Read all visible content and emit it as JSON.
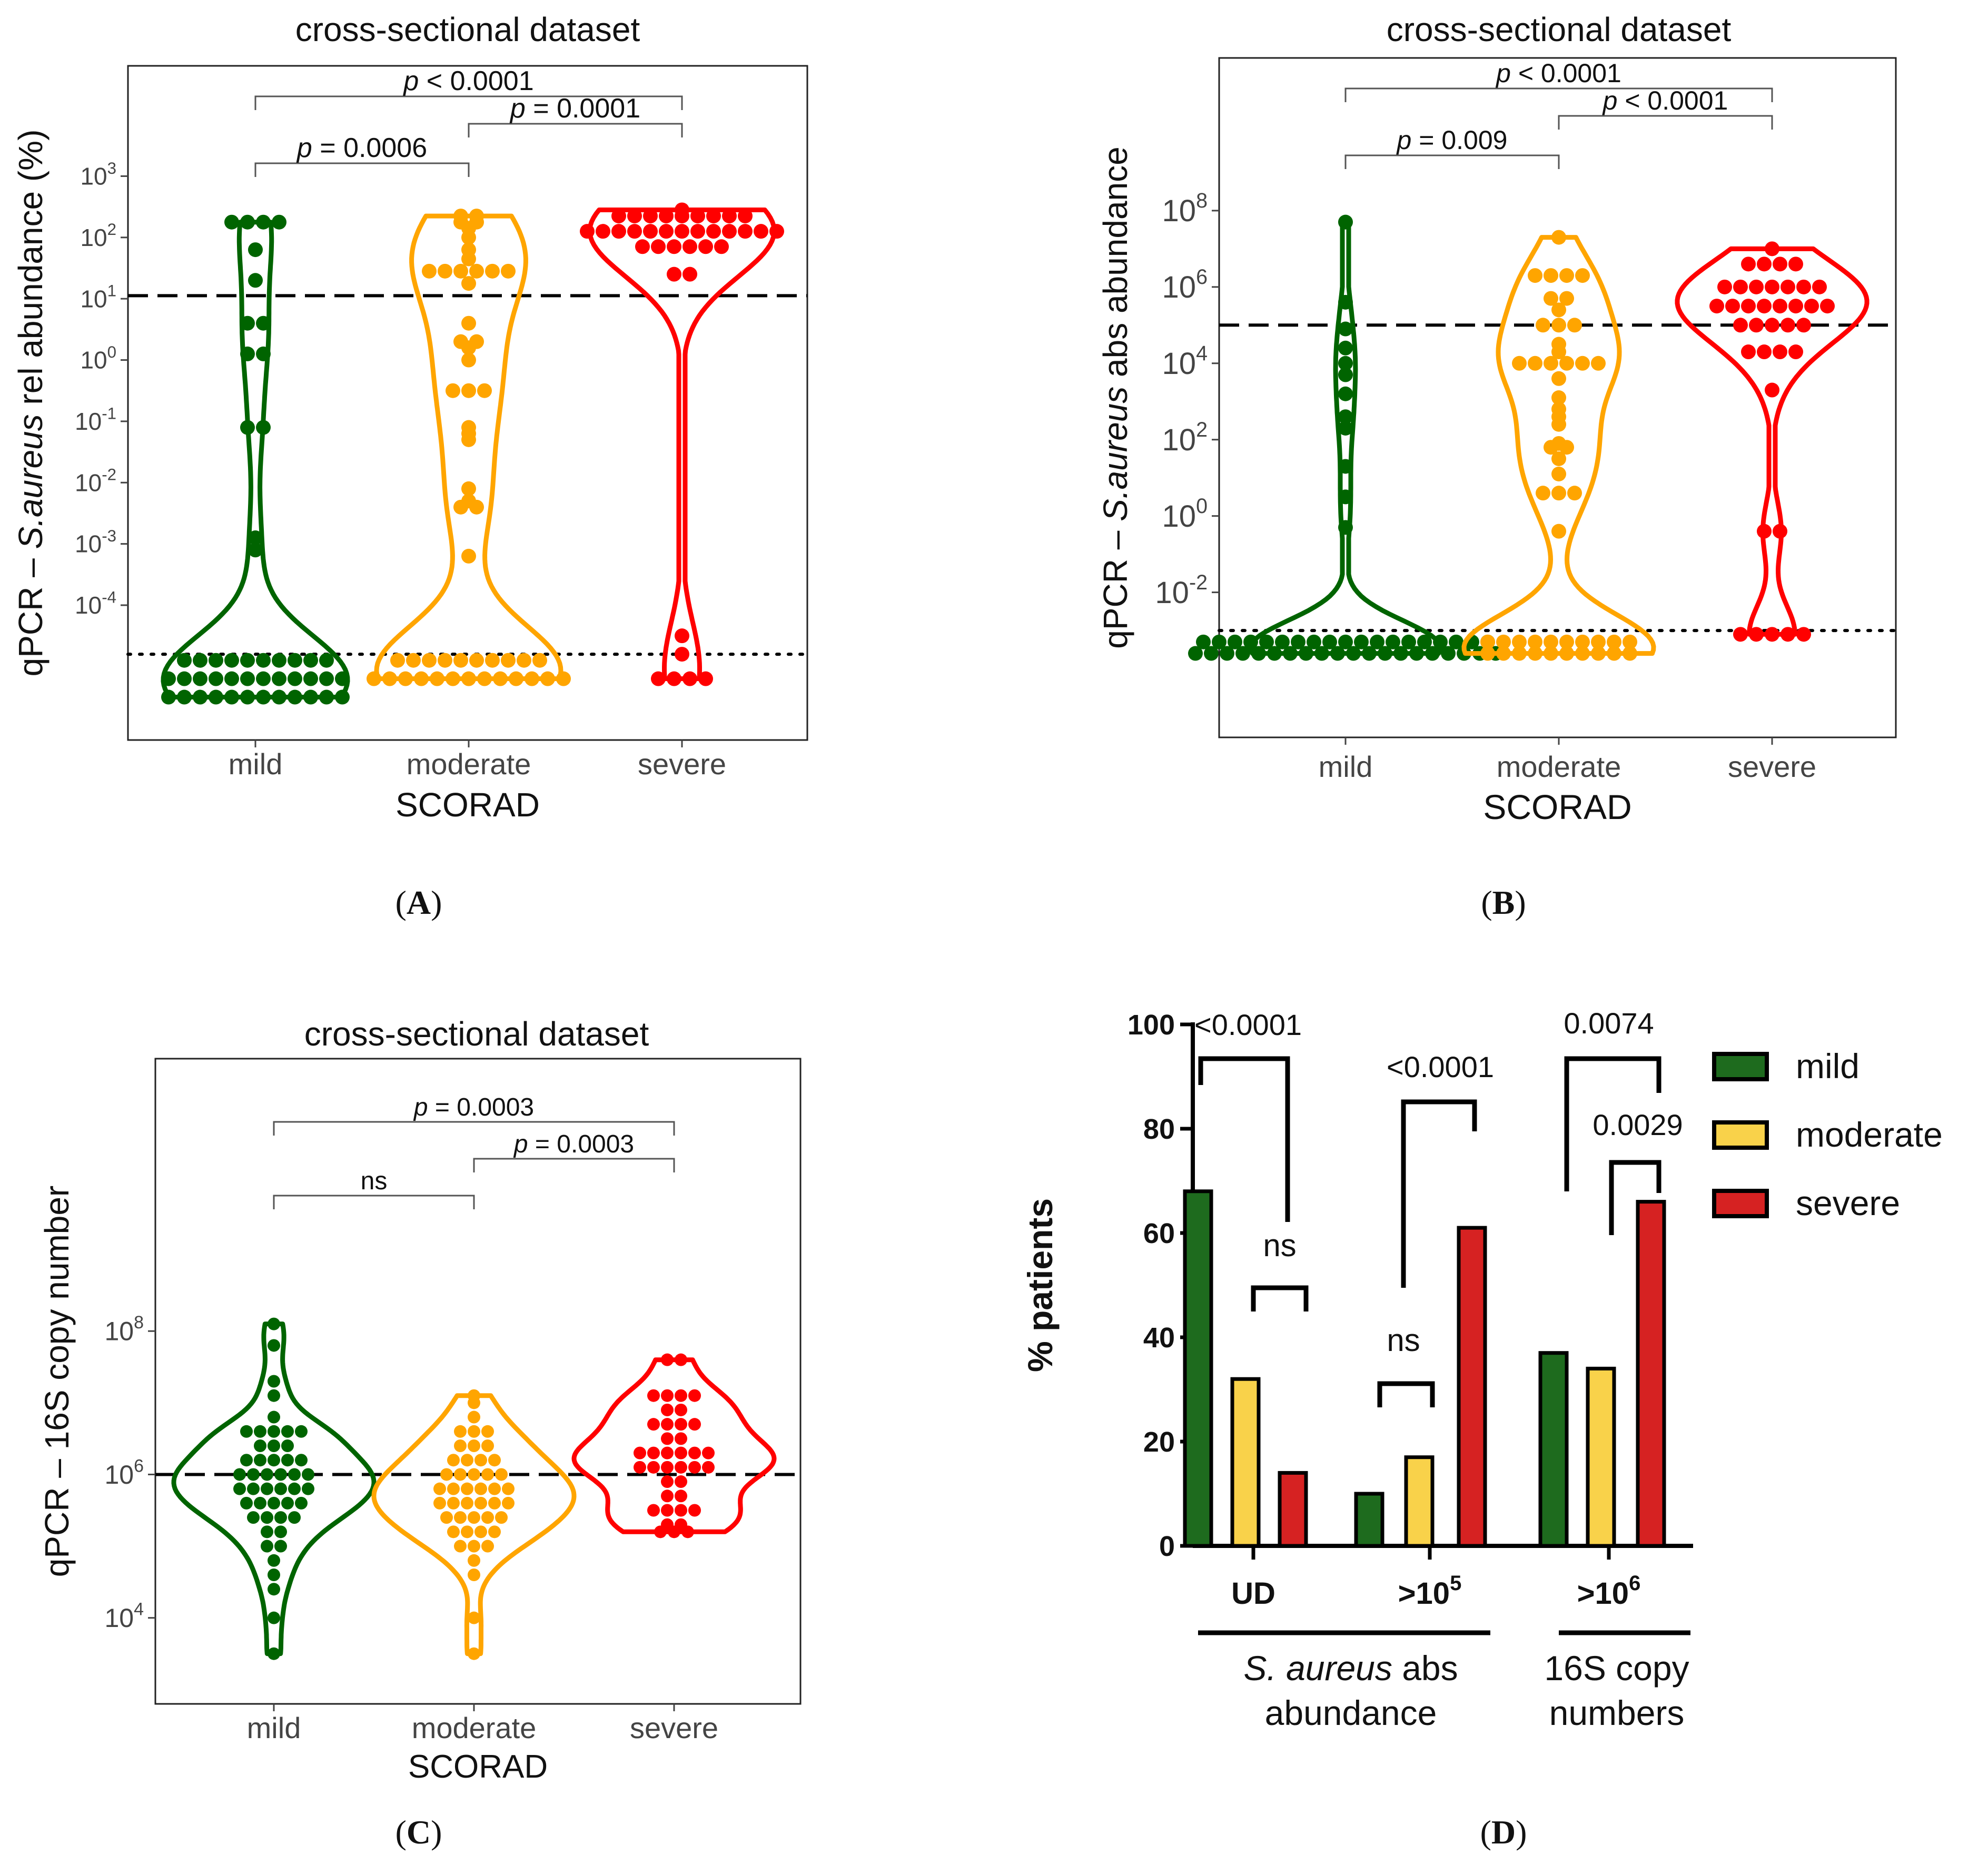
{
  "colors": {
    "mild": "#006400",
    "moderate": "#FFA500",
    "severe": "#FF0000",
    "mild_bar": "#1E6B1E",
    "moderate_bar": "#F9D24A",
    "severe_bar": "#D62222"
  },
  "panels": {
    "A": "A",
    "B": "B",
    "C": "C",
    "D": "D"
  },
  "chart_data": [
    {
      "id": "A",
      "type": "violin",
      "title": "cross-sectional dataset",
      "ylabel_pre": "qPCR – ",
      "ylabel_it": "S.aureus",
      "ylabel_post": " rel abundance (%)",
      "xlabel": "SCORAD",
      "categories": [
        "mild",
        "moderate",
        "severe"
      ],
      "yscale": "log10",
      "ylim_log": [
        -6.2,
        4.8
      ],
      "yticks": [
        {
          "e": "-4"
        },
        {
          "e": "-3"
        },
        {
          "e": "-2"
        },
        {
          "e": "-1"
        },
        {
          "e": "0"
        },
        {
          "e": "1"
        },
        {
          "e": "2"
        },
        {
          "e": "3"
        }
      ],
      "hline_dashed_log": 1.05,
      "hline_dotted_log": -4.8,
      "comparisons": [
        {
          "pair": [
            0,
            1
          ],
          "text": "= 0.0006",
          "level": 0
        },
        {
          "pair": [
            1,
            2
          ],
          "text": "= 0.0001",
          "level": 1
        },
        {
          "pair": [
            0,
            2
          ],
          "text": "< 0.0001",
          "level": 2
        }
      ],
      "series": [
        {
          "name": "mild",
          "points_log": [
            2.25,
            2.25,
            2.25,
            2.25,
            1.8,
            1.3,
            0.6,
            0.6,
            0.1,
            0.1,
            -1.1,
            -1.1,
            -2.9,
            -3.1,
            -4.9,
            -4.9,
            -4.9,
            -4.9,
            -4.9,
            -4.9,
            -4.9,
            -4.9,
            -4.9,
            -4.9,
            -5.2,
            -5.2,
            -5.2,
            -5.2,
            -5.2,
            -5.2,
            -5.2,
            -5.2,
            -5.2,
            -5.2,
            -5.2,
            -5.2,
            -5.5,
            -5.5,
            -5.5,
            -5.5,
            -5.5,
            -5.5,
            -5.5,
            -5.5,
            -5.5,
            -5.5,
            -5.5,
            -5.5
          ]
        },
        {
          "name": "moderate",
          "points_log": [
            2.35,
            2.35,
            2.25,
            2.25,
            2.15,
            2.0,
            1.8,
            1.65,
            1.45,
            1.45,
            1.45,
            1.45,
            1.45,
            1.45,
            1.25,
            0.6,
            0.3,
            0.3,
            0.2,
            0.0,
            -0.5,
            -0.5,
            -0.5,
            -1.1,
            -1.2,
            -1.3,
            -2.1,
            -2.3,
            -2.4,
            -2.4,
            -3.2,
            -4.9,
            -4.9,
            -4.9,
            -4.9,
            -4.9,
            -4.9,
            -4.9,
            -4.9,
            -4.9,
            -4.9,
            -5.2,
            -5.2,
            -5.2,
            -5.2,
            -5.2,
            -5.2,
            -5.2,
            -5.2,
            -5.2,
            -5.2,
            -5.2,
            -5.2,
            -5.2
          ]
        },
        {
          "name": "severe",
          "points_log": [
            2.45,
            2.35,
            2.35,
            2.35,
            2.35,
            2.35,
            2.35,
            2.35,
            2.35,
            2.35,
            2.1,
            2.1,
            2.1,
            2.1,
            2.1,
            2.1,
            2.1,
            2.1,
            2.1,
            2.1,
            2.1,
            2.1,
            2.1,
            1.85,
            1.85,
            1.85,
            1.85,
            1.85,
            1.85,
            1.4,
            1.4,
            -4.5,
            -4.8,
            -5.2,
            -5.2,
            -5.2,
            -5.2
          ]
        }
      ]
    },
    {
      "id": "B",
      "type": "violin",
      "title": "cross-sectional dataset",
      "ylabel_pre": "qPCR – ",
      "ylabel_it": "S.aureus",
      "ylabel_post": " abs abundance",
      "xlabel": "SCORAD",
      "categories": [
        "mild",
        "moderate",
        "severe"
      ],
      "yscale": "log10",
      "ylim_log": [
        -5.8,
        12.0
      ],
      "yticks": [
        {
          "e": "-2"
        },
        {
          "e": "0"
        },
        {
          "e": "2"
        },
        {
          "e": "4"
        },
        {
          "e": "6"
        },
        {
          "e": "8"
        }
      ],
      "hline_dashed_log": 5.0,
      "hline_dotted_log": -3.0,
      "comparisons": [
        {
          "pair": [
            0,
            1
          ],
          "text": "= 0.009",
          "level": 0
        },
        {
          "pair": [
            1,
            2
          ],
          "text": "< 0.0001",
          "level": 1
        },
        {
          "pair": [
            0,
            2
          ],
          "text": "< 0.0001",
          "level": 2
        }
      ],
      "series": [
        {
          "name": "mild",
          "points_log": [
            7.7,
            5.6,
            4.9,
            4.4,
            4.0,
            3.7,
            3.2,
            2.6,
            2.3,
            1.3,
            0.5,
            -0.3,
            -3.3,
            -3.3,
            -3.3,
            -3.3,
            -3.3,
            -3.3,
            -3.3,
            -3.3,
            -3.3,
            -3.3,
            -3.3,
            -3.3,
            -3.3,
            -3.3,
            -3.3,
            -3.3,
            -3.3,
            -3.3,
            -3.3,
            -3.6,
            -3.6,
            -3.6,
            -3.6,
            -3.6,
            -3.6,
            -3.6,
            -3.6,
            -3.6,
            -3.6,
            -3.6,
            -3.6,
            -3.6,
            -3.6,
            -3.6,
            -3.6,
            -3.6,
            -3.6,
            -3.6,
            -3.6
          ]
        },
        {
          "name": "moderate",
          "points_log": [
            7.3,
            6.3,
            6.3,
            6.3,
            6.3,
            5.7,
            5.7,
            5.4,
            5.0,
            5.0,
            5.0,
            4.5,
            4.3,
            4.0,
            4.0,
            4.0,
            4.0,
            4.0,
            4.0,
            3.6,
            3.1,
            2.8,
            2.6,
            2.4,
            1.9,
            1.8,
            1.8,
            1.5,
            1.1,
            0.6,
            0.6,
            0.6,
            -0.4,
            -3.3,
            -3.3,
            -3.3,
            -3.3,
            -3.3,
            -3.3,
            -3.3,
            -3.3,
            -3.3,
            -3.3,
            -3.6,
            -3.6,
            -3.6,
            -3.6,
            -3.6,
            -3.6,
            -3.6,
            -3.6,
            -3.6,
            -3.6
          ]
        },
        {
          "name": "severe",
          "points_log": [
            7.0,
            6.6,
            6.6,
            6.6,
            6.6,
            6.0,
            6.0,
            6.0,
            6.0,
            6.0,
            6.0,
            6.0,
            5.5,
            5.5,
            5.5,
            5.5,
            5.5,
            5.5,
            5.5,
            5.5,
            5.0,
            5.0,
            5.0,
            5.0,
            5.0,
            4.3,
            4.3,
            4.3,
            4.3,
            3.3,
            -0.4,
            -0.4,
            -3.1,
            -3.1,
            -3.1,
            -3.1,
            -3.1
          ]
        }
      ]
    },
    {
      "id": "C",
      "type": "violin",
      "title": "cross-sectional dataset",
      "ylabel_pre": "qPCR – 16S copy number",
      "ylabel_it": "",
      "ylabel_post": "",
      "xlabel": "SCORAD",
      "categories": [
        "mild",
        "moderate",
        "severe"
      ],
      "yscale": "log10",
      "ylim_log": [
        2.8,
        11.8
      ],
      "yticks": [
        {
          "e": "4"
        },
        {
          "e": "6"
        },
        {
          "e": "8"
        }
      ],
      "hline_dashed_log": 6.0,
      "comparisons": [
        {
          "pair": [
            0,
            1
          ],
          "text": "ns",
          "level": 0,
          "plain": true
        },
        {
          "pair": [
            1,
            2
          ],
          "text": "= 0.0003",
          "level": 1
        },
        {
          "pair": [
            0,
            2
          ],
          "text": "= 0.0003",
          "level": 2
        }
      ],
      "series": [
        {
          "name": "mild",
          "points_log": [
            8.1,
            7.8,
            7.3,
            7.1,
            6.8,
            6.6,
            6.6,
            6.6,
            6.6,
            6.6,
            6.4,
            6.4,
            6.4,
            6.2,
            6.2,
            6.2,
            6.2,
            6.2,
            6.0,
            6.0,
            6.0,
            6.0,
            6.0,
            6.0,
            5.8,
            5.8,
            5.8,
            5.8,
            5.8,
            5.8,
            5.6,
            5.6,
            5.6,
            5.6,
            5.6,
            5.4,
            5.4,
            5.4,
            5.4,
            5.2,
            5.2,
            5.0,
            5.0,
            4.8,
            4.6,
            4.4,
            4.0,
            3.5
          ]
        },
        {
          "name": "moderate",
          "points_log": [
            7.1,
            7.0,
            6.8,
            6.6,
            6.6,
            6.6,
            6.4,
            6.4,
            6.4,
            6.2,
            6.2,
            6.2,
            6.2,
            6.0,
            6.0,
            6.0,
            6.0,
            6.0,
            5.8,
            5.8,
            5.8,
            5.8,
            5.8,
            5.8,
            5.6,
            5.6,
            5.6,
            5.6,
            5.6,
            5.6,
            5.4,
            5.4,
            5.4,
            5.4,
            5.4,
            5.2,
            5.2,
            5.2,
            5.2,
            5.0,
            5.0,
            5.0,
            4.8,
            4.6,
            4.0,
            3.5
          ]
        },
        {
          "name": "severe",
          "points_log": [
            7.6,
            7.6,
            7.1,
            7.1,
            7.1,
            7.1,
            6.9,
            6.9,
            6.7,
            6.7,
            6.7,
            6.7,
            6.5,
            6.5,
            6.3,
            6.3,
            6.3,
            6.3,
            6.3,
            6.3,
            6.1,
            6.1,
            6.1,
            6.1,
            6.1,
            6.1,
            5.9,
            5.9,
            5.7,
            5.7,
            5.5,
            5.5,
            5.5,
            5.5,
            5.3,
            5.3,
            5.2,
            5.2,
            5.2
          ]
        }
      ]
    },
    {
      "id": "D",
      "type": "bar",
      "ylabel": "% patients",
      "ylim": [
        0,
        100
      ],
      "yticks": [
        0,
        20,
        40,
        60,
        80,
        100
      ],
      "categories": [
        "UD",
        ">10",
        ">10"
      ],
      "category_sup": [
        "",
        "5",
        "6"
      ],
      "series": [
        {
          "name": "mild",
          "values": [
            68,
            10,
            37
          ]
        },
        {
          "name": "moderate",
          "values": [
            32,
            17,
            34
          ]
        },
        {
          "name": "severe",
          "values": [
            14,
            61,
            66
          ]
        }
      ],
      "legend": [
        "mild",
        "moderate",
        "severe"
      ],
      "group_labels": [
        {
          "text_it": "S. aureus",
          "text_rest": " abs",
          "line2": "abundance"
        },
        {
          "text_it": "",
          "text_rest": "16S copy",
          "line2": "numbers"
        }
      ],
      "annotations": [
        {
          "text": "<0.0001"
        },
        {
          "text": "ns"
        },
        {
          "text": "<0.0001"
        },
        {
          "text": "ns"
        },
        {
          "text": "0.0074"
        },
        {
          "text": "0.0029"
        }
      ]
    }
  ]
}
